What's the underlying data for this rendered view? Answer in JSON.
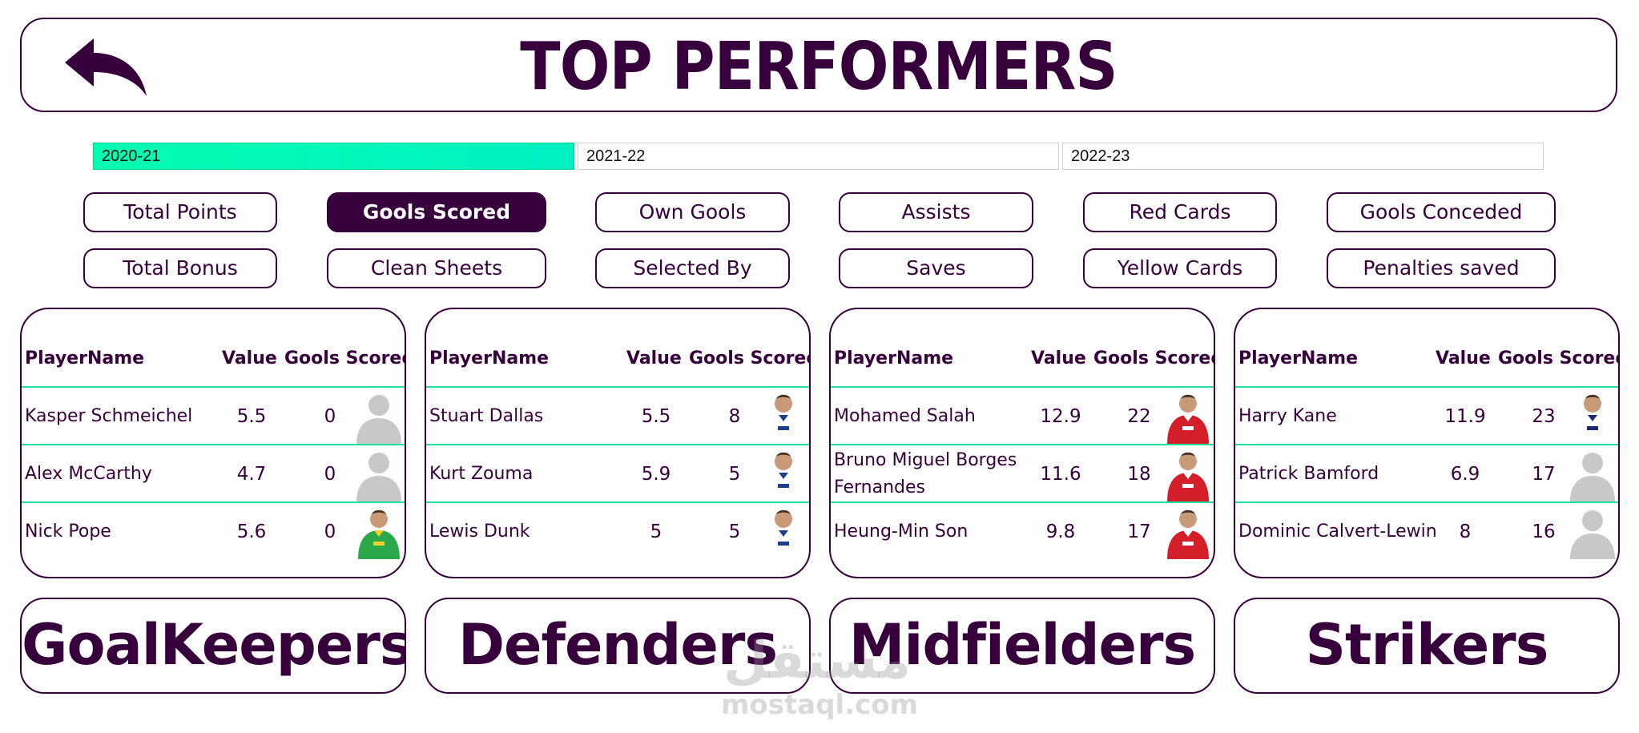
{
  "header": {
    "title": "TOP PERFORMERS"
  },
  "seasons": [
    {
      "label": "2020-21",
      "active": true
    },
    {
      "label": "2021-22",
      "active": false
    },
    {
      "label": "2022-23",
      "active": false
    }
  ],
  "metrics": [
    {
      "label": "Total Points",
      "active": false
    },
    {
      "label": "Gools Scored",
      "active": true
    },
    {
      "label": "Own Gools",
      "active": false
    },
    {
      "label": "Assists",
      "active": false
    },
    {
      "label": "Red Cards",
      "active": false
    },
    {
      "label": "Gools Conceded",
      "active": false
    },
    {
      "label": "Total Bonus",
      "active": false
    },
    {
      "label": "Clean Sheets",
      "active": false
    },
    {
      "label": "Selected By",
      "active": false
    },
    {
      "label": "Saves",
      "active": false
    },
    {
      "label": "Yellow Cards",
      "active": false
    },
    {
      "label": "Penalties saved",
      "active": false
    }
  ],
  "table_headers": {
    "player": "PlayerName",
    "value": "Value",
    "stat": "Gools Scored"
  },
  "cards": [
    {
      "category": "GoalKeepers",
      "rows": [
        {
          "name": "Kasper Schmeichel",
          "value": "5.5",
          "stat": "0",
          "photo": "placeholder-icon"
        },
        {
          "name": "Alex McCarthy",
          "value": "4.7",
          "stat": "0",
          "photo": "placeholder-icon"
        },
        {
          "name": "Nick Pope",
          "value": "5.6",
          "stat": "0",
          "photo": "player-photo"
        }
      ]
    },
    {
      "category": "Defenders",
      "rows": [
        {
          "name": "Stuart Dallas",
          "value": "5.5",
          "stat": "8",
          "photo": "player-photo"
        },
        {
          "name": "Kurt Zouma",
          "value": "5.9",
          "stat": "5",
          "photo": "player-photo"
        },
        {
          "name": "Lewis Dunk",
          "value": "5",
          "stat": "5",
          "photo": "player-photo"
        }
      ]
    },
    {
      "category": "Midfielders",
      "rows": [
        {
          "name": "Mohamed Salah",
          "value": "12.9",
          "stat": "22",
          "photo": "player-photo"
        },
        {
          "name": "Bruno Miguel Borges Fernandes",
          "value": "11.6",
          "stat": "18",
          "photo": "player-photo"
        },
        {
          "name": "Heung-Min Son",
          "value": "9.8",
          "stat": "17",
          "photo": "player-photo"
        }
      ]
    },
    {
      "category": "Strikers",
      "rows": [
        {
          "name": "Harry Kane",
          "value": "11.9",
          "stat": "23",
          "photo": "player-photo"
        },
        {
          "name": "Patrick Bamford",
          "value": "6.9",
          "stat": "17",
          "photo": "placeholder-icon"
        },
        {
          "name": "Dominic Calvert-Lewin",
          "value": "8",
          "stat": "16",
          "photo": "placeholder-icon"
        }
      ]
    }
  ],
  "watermark": {
    "arabic": "مستقل",
    "latin": "mostaql.com"
  },
  "colors": {
    "primary": "#37003c",
    "accent": "#00ff9f",
    "divider": "#1fe0a0",
    "placeholder": "#c8c8c8"
  }
}
